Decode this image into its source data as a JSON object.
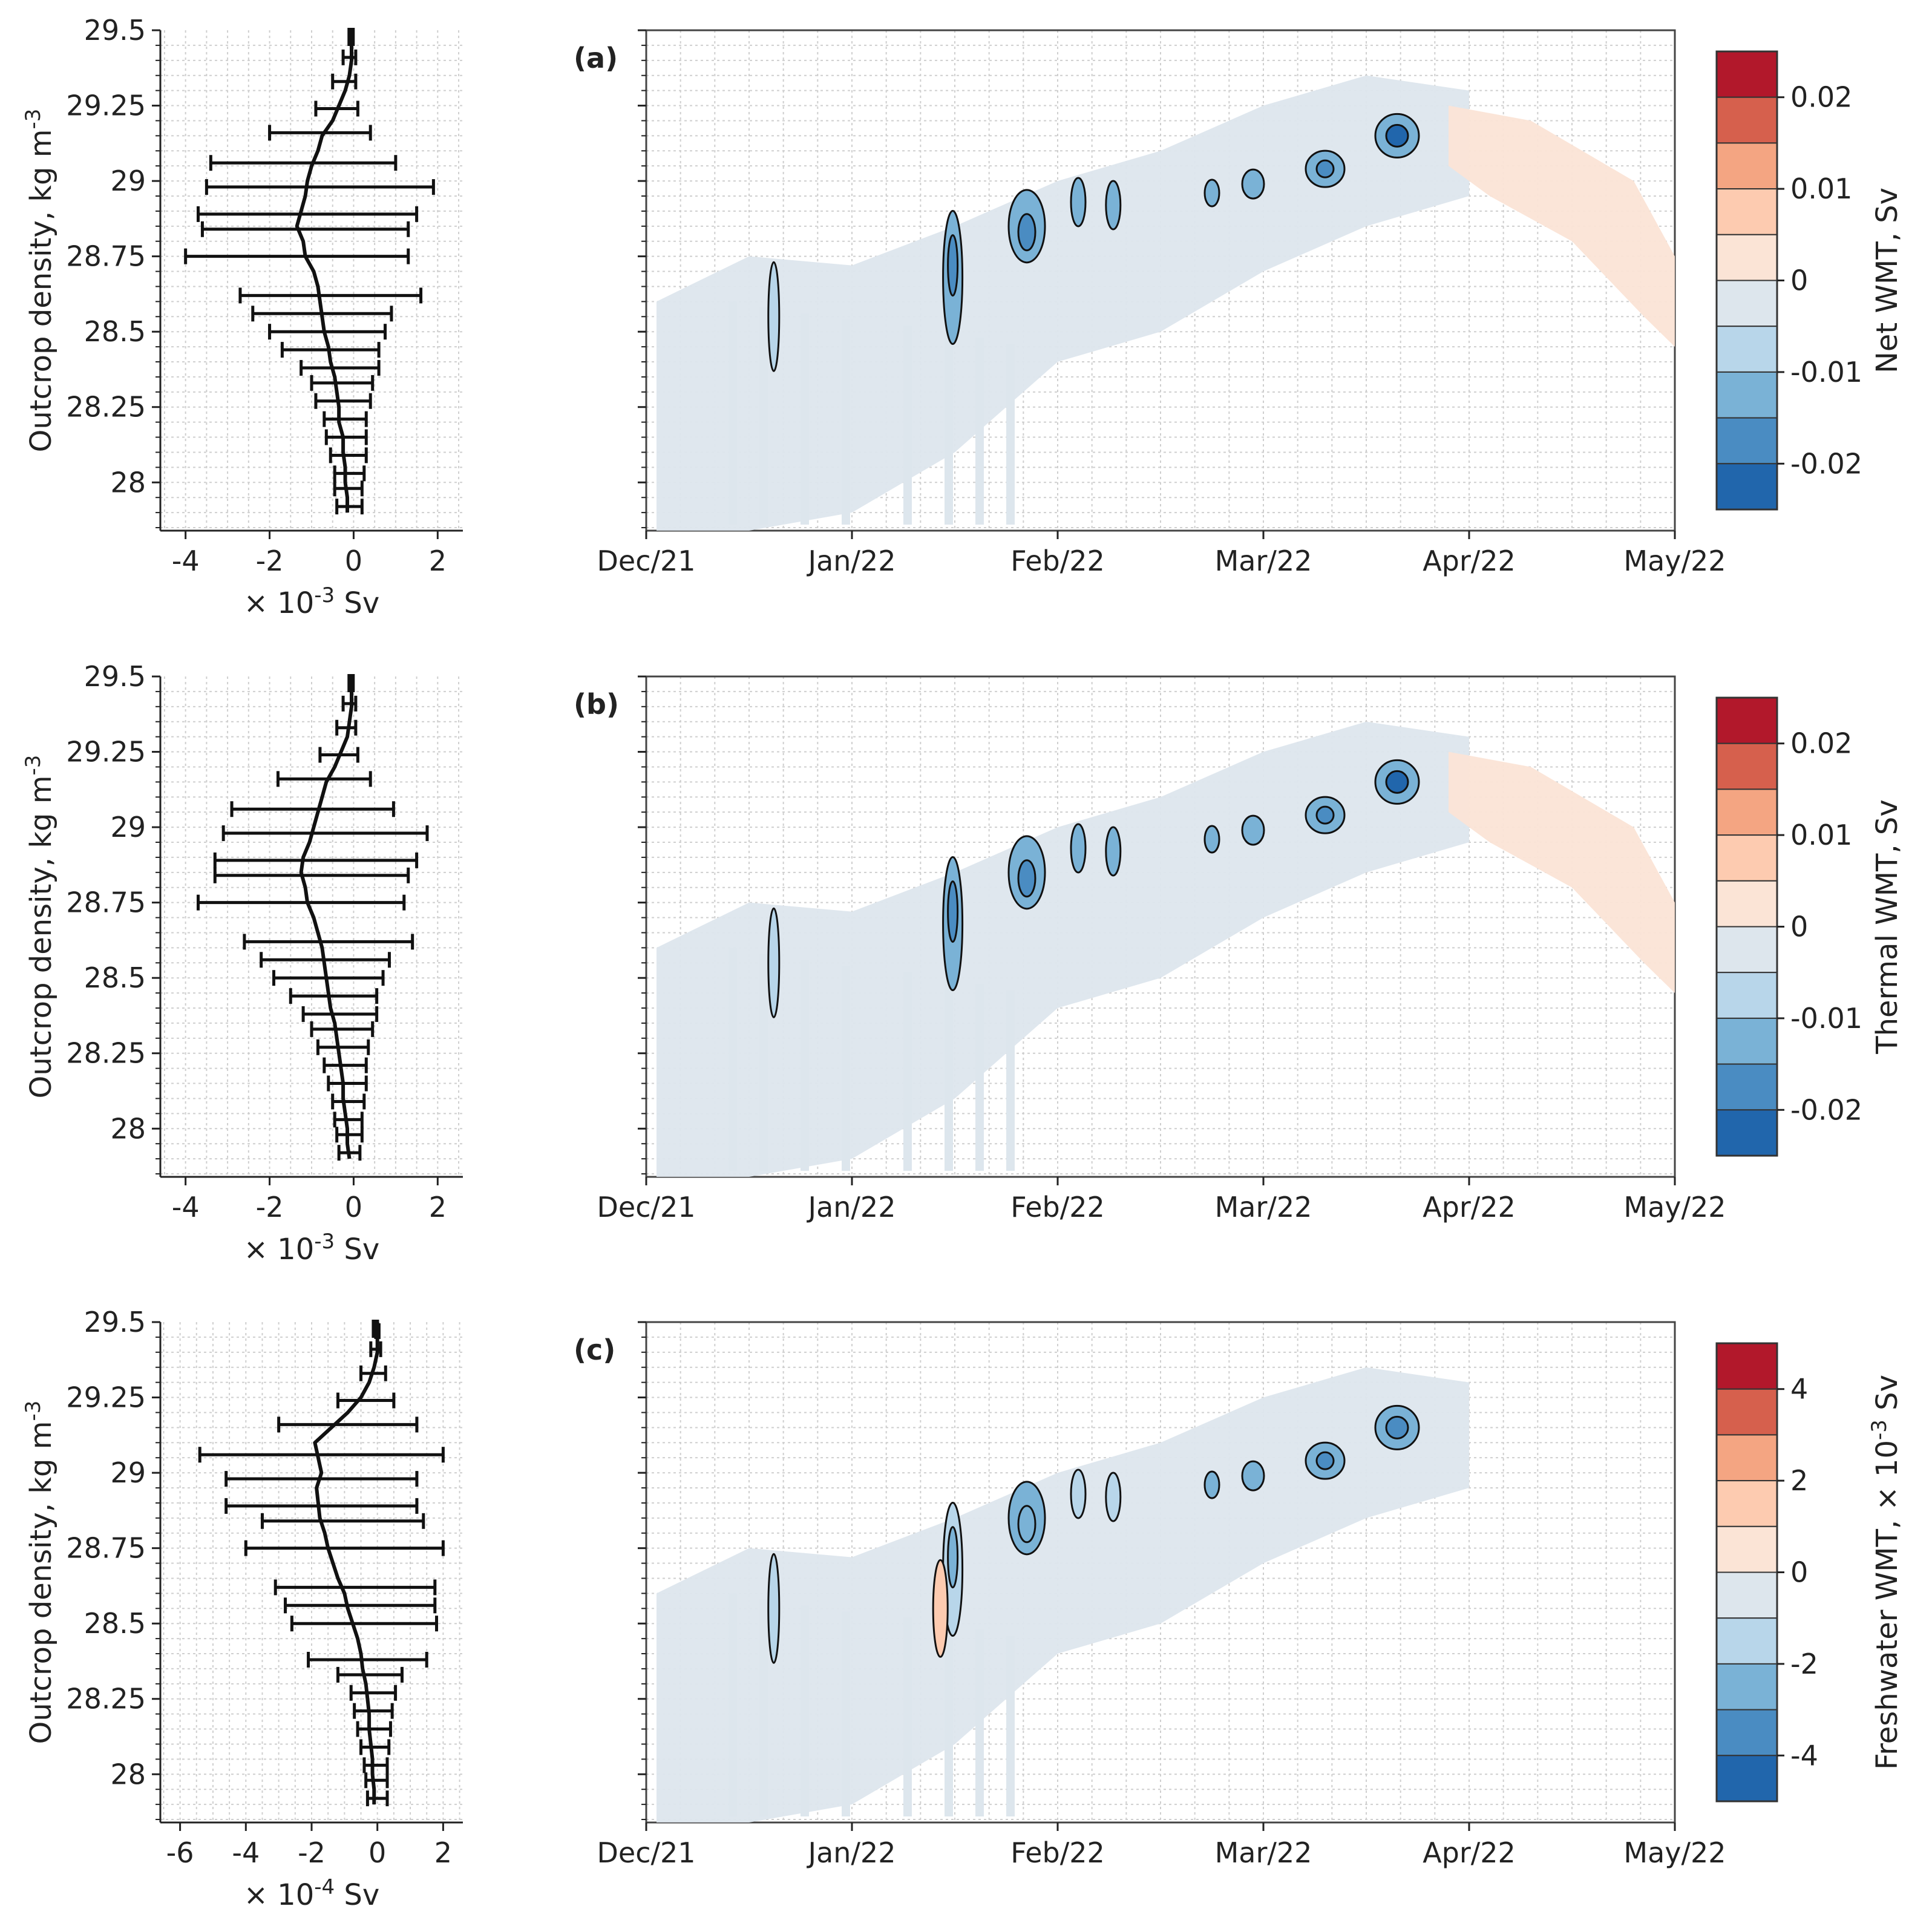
{
  "chart_data": [
    {
      "type": "line",
      "panel": "a-profile",
      "ylabel": "Outcrop density, kg m-3",
      "xlabel": "× 10-3 Sv",
      "xlim": [
        -4.6,
        2.6
      ],
      "ylim": [
        27.84,
        29.5
      ],
      "xticks": [
        "-4",
        "-2",
        "0",
        "2"
      ],
      "yticks": [
        "28",
        "28.25",
        "28.5",
        "28.75",
        "29",
        "29.25",
        "29.5"
      ],
      "density": [
        27.9,
        27.95,
        28.0,
        28.05,
        28.1,
        28.15,
        28.2,
        28.25,
        28.3,
        28.35,
        28.4,
        28.45,
        28.5,
        28.55,
        28.6,
        28.65,
        28.7,
        28.75,
        28.8,
        28.85,
        28.9,
        28.95,
        29.0,
        29.05,
        29.1,
        29.15,
        29.2,
        29.25,
        29.3,
        29.35,
        29.4,
        29.45,
        29.5
      ],
      "mean": [
        -0.15,
        -0.15,
        -0.2,
        -0.2,
        -0.25,
        -0.25,
        -0.35,
        -0.35,
        -0.4,
        -0.45,
        -0.55,
        -0.6,
        -0.7,
        -0.75,
        -0.8,
        -0.85,
        -0.95,
        -1.15,
        -1.2,
        -1.35,
        -1.25,
        -1.15,
        -1.1,
        -1.0,
        -0.85,
        -0.75,
        -0.5,
        -0.35,
        -0.2,
        -0.1,
        -0.05,
        -0.05,
        -0.05
      ],
      "err_low": [
        -0.4,
        -0.45,
        -0.45,
        -0.55,
        -0.65,
        -0.7,
        -0.9,
        -1.0,
        -1.25,
        -1.7,
        -2.0,
        -2.4,
        -2.7,
        -4.0,
        -3.6,
        -3.7,
        -3.5,
        -3.4,
        -2.0,
        -0.9,
        -0.5,
        -0.25
      ],
      "err_high": [
        0.2,
        0.2,
        0.25,
        0.3,
        0.3,
        0.3,
        0.4,
        0.45,
        0.6,
        0.6,
        0.75,
        0.9,
        1.6,
        1.3,
        1.3,
        1.5,
        1.9,
        1.0,
        0.4,
        0.1,
        0.05,
        0.05
      ],
      "err_density": [
        27.92,
        27.98,
        28.03,
        28.09,
        28.15,
        28.21,
        28.27,
        28.33,
        28.38,
        28.44,
        28.5,
        28.56,
        28.62,
        28.75,
        28.84,
        28.89,
        28.98,
        29.06,
        29.16,
        29.24,
        29.33,
        29.41
      ]
    },
    {
      "type": "heatmap",
      "panel": "a",
      "label": "(a)",
      "x_ticks": [
        "Dec/21",
        "Jan/22",
        "Feb/22",
        "Mar/22",
        "Apr/22",
        "May/22"
      ],
      "ylim": [
        27.84,
        29.5
      ],
      "colorbar_label": "Net WMT, Sv",
      "colorbar_ticks": [
        "0.02",
        "0.01",
        "0",
        "-0.01",
        "-0.02"
      ]
    },
    {
      "type": "line",
      "panel": "b-profile",
      "ylabel": "Outcrop density, kg m-3",
      "xlabel": "× 10-3 Sv",
      "xlim": [
        -4.6,
        2.6
      ],
      "ylim": [
        27.84,
        29.5
      ],
      "xticks": [
        "-4",
        "-2",
        "0",
        "2"
      ],
      "yticks": [
        "28",
        "28.25",
        "28.5",
        "28.75",
        "29",
        "29.25",
        "29.5"
      ],
      "density": [
        27.9,
        27.95,
        28.0,
        28.05,
        28.1,
        28.15,
        28.2,
        28.25,
        28.3,
        28.35,
        28.4,
        28.45,
        28.5,
        28.55,
        28.6,
        28.65,
        28.7,
        28.75,
        28.8,
        28.85,
        28.9,
        28.95,
        29.0,
        29.05,
        29.1,
        29.15,
        29.2,
        29.25,
        29.3,
        29.35,
        29.4,
        29.45,
        29.5
      ],
      "mean": [
        -0.1,
        -0.15,
        -0.15,
        -0.2,
        -0.25,
        -0.25,
        -0.3,
        -0.35,
        -0.4,
        -0.45,
        -0.55,
        -0.6,
        -0.65,
        -0.7,
        -0.75,
        -0.85,
        -0.95,
        -1.1,
        -1.15,
        -1.25,
        -1.2,
        -1.05,
        -0.95,
        -0.85,
        -0.75,
        -0.65,
        -0.45,
        -0.3,
        -0.15,
        -0.1,
        -0.05,
        -0.05,
        -0.05
      ],
      "err_low": [
        -0.35,
        -0.4,
        -0.45,
        -0.5,
        -0.6,
        -0.7,
        -0.85,
        -1.0,
        -1.2,
        -1.5,
        -1.9,
        -2.2,
        -2.6,
        -3.7,
        -3.3,
        -3.3,
        -3.1,
        -2.9,
        -1.8,
        -0.8,
        -0.4,
        -0.25
      ],
      "err_high": [
        0.15,
        0.2,
        0.2,
        0.25,
        0.3,
        0.3,
        0.35,
        0.45,
        0.55,
        0.55,
        0.7,
        0.85,
        1.4,
        1.2,
        1.3,
        1.5,
        1.75,
        0.95,
        0.4,
        0.1,
        0.05,
        0.05
      ],
      "err_density": [
        27.92,
        27.98,
        28.03,
        28.09,
        28.15,
        28.21,
        28.27,
        28.33,
        28.38,
        28.44,
        28.5,
        28.56,
        28.62,
        28.75,
        28.84,
        28.89,
        28.98,
        29.06,
        29.16,
        29.24,
        29.33,
        29.41
      ]
    },
    {
      "type": "heatmap",
      "panel": "b",
      "label": "(b)",
      "x_ticks": [
        "Dec/21",
        "Jan/22",
        "Feb/22",
        "Mar/22",
        "Apr/22",
        "May/22"
      ],
      "ylim": [
        27.84,
        29.5
      ],
      "colorbar_label": "Thermal WMT, Sv",
      "colorbar_ticks": [
        "0.02",
        "0.01",
        "0",
        "-0.01",
        "-0.02"
      ]
    },
    {
      "type": "line",
      "panel": "c-profile",
      "ylabel": "Outcrop density, kg m-3",
      "xlabel": "× 10-4 Sv",
      "xlim": [
        -6.6,
        2.6
      ],
      "ylim": [
        27.84,
        29.5
      ],
      "xticks": [
        "-6",
        "-4",
        "-2",
        "0",
        "2"
      ],
      "yticks": [
        "28",
        "28.25",
        "28.5",
        "28.75",
        "29",
        "29.25",
        "29.5"
      ],
      "density": [
        27.9,
        27.95,
        28.0,
        28.05,
        28.1,
        28.15,
        28.2,
        28.25,
        28.3,
        28.35,
        28.4,
        28.45,
        28.5,
        28.55,
        28.6,
        28.65,
        28.7,
        28.75,
        28.8,
        28.85,
        28.9,
        28.95,
        29.0,
        29.05,
        29.1,
        29.15,
        29.2,
        29.25,
        29.3,
        29.35,
        29.4,
        29.45,
        29.5
      ],
      "mean": [
        -0.1,
        -0.1,
        -0.15,
        -0.15,
        -0.2,
        -0.25,
        -0.25,
        -0.3,
        -0.35,
        -0.45,
        -0.5,
        -0.6,
        -0.75,
        -0.9,
        -1.0,
        -1.2,
        -1.35,
        -1.5,
        -1.6,
        -1.75,
        -1.8,
        -1.85,
        -1.7,
        -1.8,
        -1.9,
        -1.4,
        -0.9,
        -0.5,
        -0.25,
        -0.1,
        0.0,
        0.0,
        0.0
      ],
      "err_low": [
        -0.3,
        -0.35,
        -0.4,
        -0.5,
        -0.6,
        -0.7,
        -0.8,
        -1.2,
        -2.1,
        -2.6,
        -2.8,
        -3.1,
        -4.0,
        -3.5,
        -4.6,
        -4.6,
        -5.4,
        -3.0,
        -1.2,
        -0.5,
        -0.2,
        -0.05
      ],
      "err_high": [
        0.3,
        0.3,
        0.3,
        0.35,
        0.4,
        0.45,
        0.55,
        0.75,
        1.5,
        1.8,
        1.75,
        1.75,
        2.0,
        1.4,
        1.2,
        1.2,
        2.0,
        1.2,
        0.5,
        0.25,
        0.1,
        0.05
      ],
      "err_density": [
        27.92,
        27.98,
        28.03,
        28.09,
        28.15,
        28.21,
        28.27,
        28.33,
        28.38,
        28.5,
        28.56,
        28.62,
        28.75,
        28.84,
        28.89,
        28.98,
        29.06,
        29.16,
        29.24,
        29.33,
        29.41,
        29.47
      ]
    },
    {
      "type": "heatmap",
      "panel": "c",
      "label": "(c)",
      "x_ticks": [
        "Dec/21",
        "Jan/22",
        "Feb/22",
        "Mar/22",
        "Apr/22",
        "May/22"
      ],
      "ylim": [
        27.84,
        29.5
      ],
      "colorbar_label": "Freshwater WMT, × 10-3 Sv",
      "colorbar_ticks": [
        "4",
        "2",
        "0",
        "-2",
        "-4"
      ]
    }
  ],
  "colors": {
    "levels": [
      "#b2182b",
      "#d6604d",
      "#f4a582",
      "#fdcbb0",
      "#fbe4d6",
      "#dde6ed",
      "#b8d6ea",
      "#7ab2d6",
      "#4a8cc2",
      "#2166ac"
    ],
    "light_blue": "#dde6ed",
    "light_red": "#fbe4d6"
  }
}
